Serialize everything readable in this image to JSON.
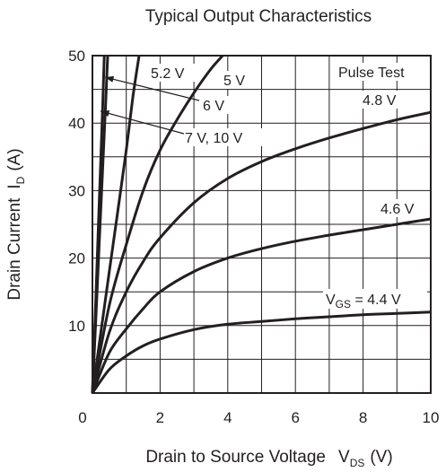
{
  "chart_data": {
    "type": "line",
    "title": "Typical Output Characteristics",
    "xlabel": {
      "text": "Drain to Source Voltage",
      "symbol": "V",
      "subscript": "DS",
      "unit": "(V)"
    },
    "ylabel": {
      "text": "Drain Current",
      "symbol": "I",
      "subscript": "D",
      "unit": "(A)"
    },
    "xlim": [
      0,
      10
    ],
    "ylim": [
      0,
      50
    ],
    "xticks": [
      0,
      2,
      4,
      6,
      8,
      10
    ],
    "yticks": [
      0,
      10,
      20,
      30,
      40,
      50
    ],
    "x_minor_step": 1,
    "y_minor_step": 5,
    "grid": true,
    "annotation": "Pulse Test",
    "series": [
      {
        "name": "VGS = 4.4 V",
        "label_main": "V",
        "label_sub": "GS",
        "label_rest": " = 4.4 V",
        "x": [
          0,
          0.5,
          1,
          1.5,
          2,
          3,
          4,
          5,
          6,
          7,
          8,
          9,
          10
        ],
        "y": [
          0,
          3.5,
          5.5,
          7,
          8,
          9.4,
          10.2,
          10.6,
          11,
          11.3,
          11.6,
          11.8,
          12
        ]
      },
      {
        "name": "4.6 V",
        "x": [
          0,
          0.5,
          1,
          1.5,
          2,
          3,
          4,
          5,
          6,
          7,
          8,
          9,
          10
        ],
        "y": [
          0,
          6,
          9.5,
          12.5,
          15,
          18,
          20,
          21.4,
          22.5,
          23.4,
          24.2,
          25,
          25.8
        ]
      },
      {
        "name": "4.8 V",
        "x": [
          0,
          0.5,
          1,
          1.5,
          2,
          3,
          4,
          5,
          6,
          7,
          8,
          9,
          10
        ],
        "y": [
          0,
          9,
          15,
          19.5,
          23,
          28.2,
          31.8,
          34.3,
          36.2,
          37.8,
          39.2,
          40.5,
          41.6
        ]
      },
      {
        "name": "5 V",
        "x": [
          0,
          0.5,
          1,
          1.5,
          2,
          2.5,
          3,
          3.5,
          3.85
        ],
        "y": [
          0,
          13,
          22,
          30,
          36,
          40.5,
          44.5,
          48,
          50
        ]
      },
      {
        "name": "5.2 V",
        "x": [
          0,
          0.25,
          0.5,
          0.75,
          1,
          1.2,
          1.38
        ],
        "y": [
          0,
          9,
          18,
          27,
          36,
          44,
          50
        ]
      },
      {
        "name": "6 V",
        "x": [
          0,
          0.1,
          0.2,
          0.3,
          0.4,
          0.45
        ],
        "y": [
          0,
          11,
          22,
          33,
          44,
          50
        ]
      },
      {
        "name": "7 V, 10 V",
        "x": [
          0,
          0.1,
          0.2,
          0.3,
          0.35
        ],
        "y": [
          0,
          14,
          28,
          42,
          50
        ]
      }
    ]
  }
}
